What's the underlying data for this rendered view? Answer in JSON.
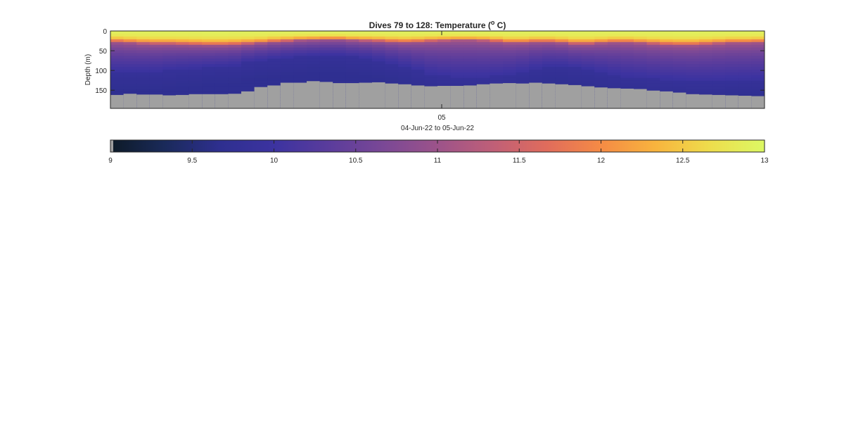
{
  "figure": {
    "title_main": "Dives 79 to 128: Temperature (",
    "title_degree": "o",
    "title_unit": " C)",
    "ylabel": "Depth (m)",
    "xlabel": "04-Jun-22 to 05-Jun-22",
    "xtick_label": "05",
    "ytick_labels": [
      "0",
      "50",
      "100",
      "150"
    ],
    "colorbar_tick_labels": [
      "9",
      "9.5",
      "10",
      "10.5",
      "11",
      "11.5",
      "12",
      "12.5",
      "13"
    ]
  },
  "colors": {
    "bottom_mask": "#a0a0a0",
    "colormap": [
      "#0d1a26",
      "#1a2a5a",
      "#2e2f8f",
      "#3c33a0",
      "#5a3c9c",
      "#7a4896",
      "#9c538a",
      "#bf5f78",
      "#e06c5c",
      "#f58b45",
      "#f8b43e",
      "#eedd4c",
      "#dcf864"
    ]
  },
  "chart_data": {
    "type": "heatmap",
    "title": "Dives 79 to 128: Temperature (o C)",
    "xlabel": "04-Jun-22 to 05-Jun-22",
    "ylabel": "Depth (m)",
    "x_ticks": [
      "05"
    ],
    "y_ticks": [
      0,
      50,
      100,
      150
    ],
    "ylim": [
      0,
      196
    ],
    "y_reversed": true,
    "colorbar": {
      "location": "below",
      "clim": [
        9,
        13
      ],
      "ticks": [
        9,
        9.5,
        10,
        10.5,
        11,
        11.5,
        12,
        12.5,
        13
      ]
    },
    "dive_columns": 50,
    "bottom_depth_m": [
      162,
      159,
      161,
      161,
      163,
      162,
      160,
      160,
      160,
      159,
      153,
      142,
      138,
      131,
      131,
      127,
      129,
      132,
      132,
      131,
      130,
      133,
      135,
      138,
      140,
      139,
      139,
      138,
      135,
      133,
      132,
      133,
      131,
      133,
      135,
      137,
      140,
      143,
      145,
      146,
      147,
      151,
      153,
      156,
      160,
      161,
      162,
      163,
      164,
      165
    ],
    "mixed_layer_depth_m": [
      28,
      30,
      32,
      33,
      33,
      34,
      35,
      36,
      36,
      35,
      33,
      31,
      28,
      26,
      24,
      23,
      22,
      22,
      24,
      25,
      26,
      28,
      29,
      28,
      26,
      25,
      24,
      24,
      25,
      27,
      30,
      30,
      28,
      28,
      30,
      33,
      33,
      31,
      29,
      29,
      31,
      33,
      35,
      36,
      36,
      34,
      32,
      30,
      30,
      29
    ],
    "cold_core_top_m": [
      105,
      105,
      104,
      104,
      100,
      97,
      95,
      92,
      90,
      88,
      80,
      75,
      72,
      68,
      66,
      64,
      63,
      63,
      66,
      69,
      75,
      82,
      90,
      100,
      110,
      115,
      118,
      118,
      118,
      115,
      110,
      104,
      96,
      90,
      90,
      94,
      98,
      104,
      110,
      116,
      118,
      122,
      124,
      126,
      128,
      128,
      128,
      126,
      125,
      124
    ]
  }
}
